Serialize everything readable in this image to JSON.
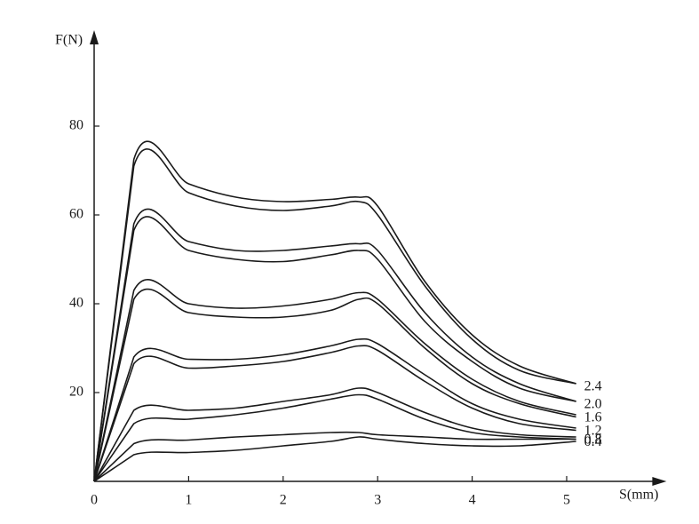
{
  "chart_data": {
    "type": "line",
    "x_label": "S(mm)",
    "y_label": "F(N)",
    "x": [
      0,
      0.42,
      1,
      1.5,
      2,
      2.5,
      2.8,
      3,
      3.5,
      4,
      4.5,
      5.1
    ],
    "xlim": [
      0,
      6
    ],
    "ylim": [
      0,
      100
    ],
    "xticks": [
      0,
      1,
      2,
      3,
      4,
      5
    ],
    "yticks": [
      20,
      40,
      60,
      80
    ],
    "grid": false,
    "color": "#1a1a1a",
    "series": [
      {
        "name": "2.4",
        "lines": [
          [
            0,
            72.5,
            67,
            64,
            63,
            63.5,
            64,
            62,
            45,
            33,
            26,
            22
          ],
          [
            0,
            71,
            65,
            62,
            61,
            62,
            63,
            60,
            44,
            32,
            25,
            22
          ]
        ]
      },
      {
        "name": "2.0",
        "lines": [
          [
            0,
            58,
            54,
            52,
            52,
            53,
            53.5,
            52,
            38,
            28,
            22,
            18
          ],
          [
            0,
            56.5,
            52,
            50,
            49.5,
            51,
            52,
            50,
            36,
            27,
            21,
            18
          ]
        ]
      },
      {
        "name": "1.6",
        "lines": [
          [
            0,
            43,
            40,
            39,
            39.5,
            41,
            42.5,
            41,
            31,
            23,
            18,
            15
          ],
          [
            0,
            41,
            38,
            37,
            37,
            38.5,
            41,
            40,
            30,
            22,
            17.5,
            14.5
          ]
        ]
      },
      {
        "name": "1.2",
        "lines": [
          [
            0,
            28,
            27.5,
            27.5,
            28.5,
            30.5,
            32,
            31,
            24,
            17.5,
            14,
            12
          ],
          [
            0,
            26.5,
            25.5,
            26,
            27,
            29,
            30.5,
            29.5,
            22.5,
            16.5,
            13,
            11.5
          ]
        ]
      },
      {
        "name": "0.8",
        "lines": [
          [
            0,
            16,
            16,
            16.5,
            18,
            19.5,
            21,
            20,
            15.5,
            12,
            10.5,
            10
          ],
          [
            0,
            13,
            14,
            15,
            16.5,
            18.5,
            19.5,
            18.5,
            14,
            11,
            10,
            9.5
          ]
        ]
      },
      {
        "name": "0.4",
        "lines": [
          [
            0,
            8.5,
            9.3,
            10,
            10.5,
            11,
            11,
            10.5,
            10,
            9.5,
            9.5,
            9.5
          ],
          [
            0,
            6,
            6.5,
            7,
            8,
            9,
            10,
            9.5,
            8.5,
            8,
            8,
            9
          ]
        ]
      }
    ]
  }
}
